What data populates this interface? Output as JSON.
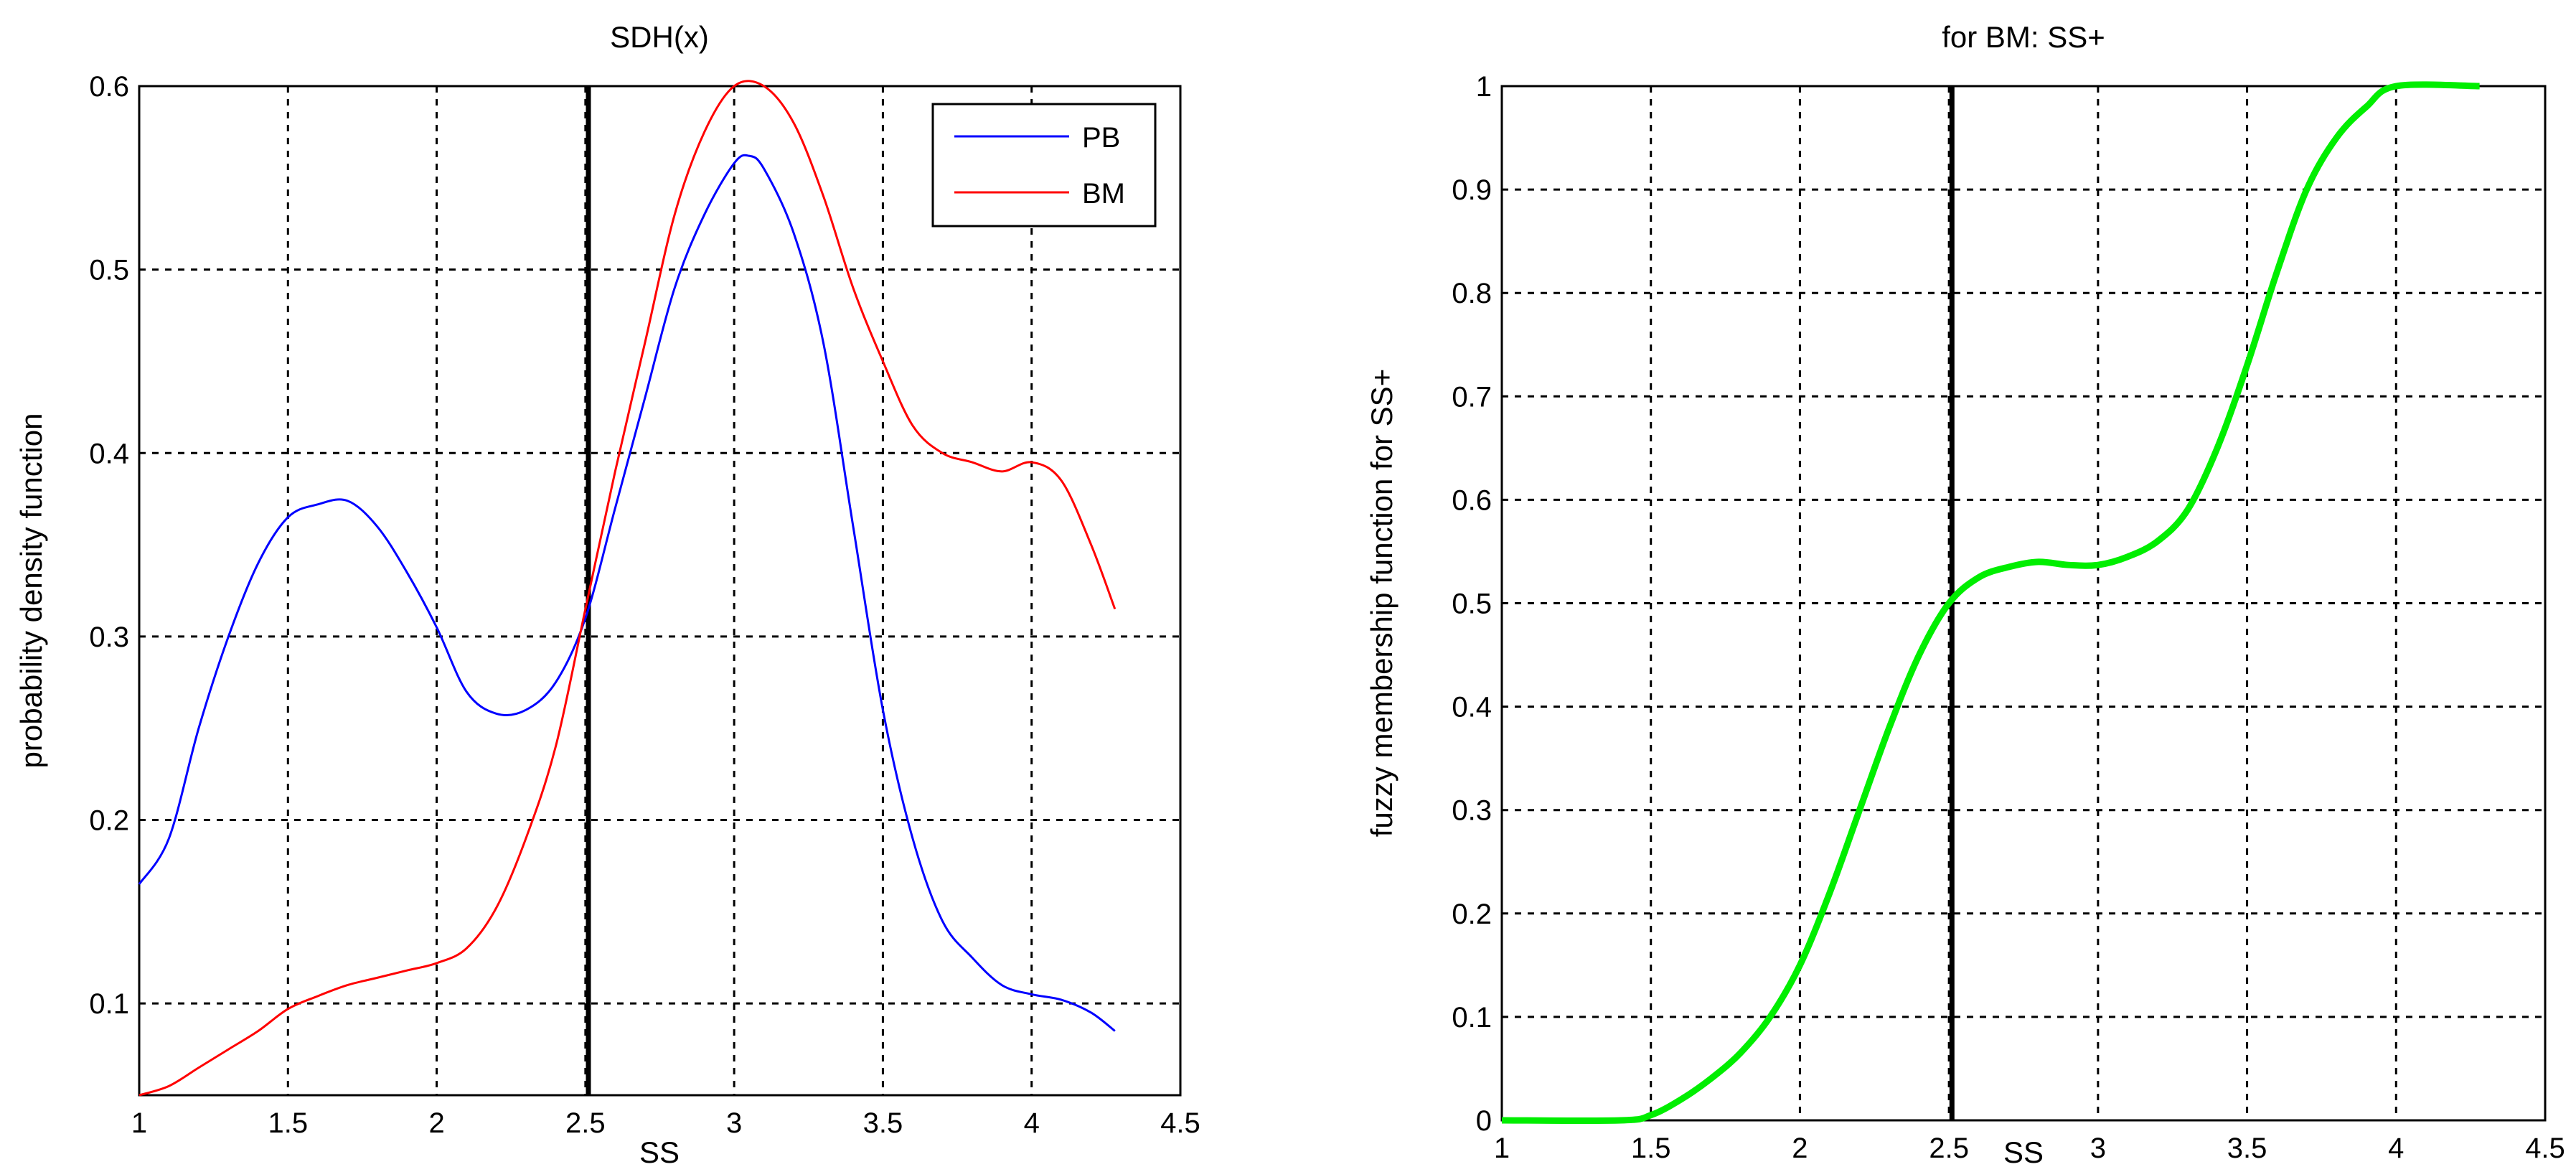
{
  "chart_data": [
    {
      "type": "line",
      "title": "SDH(x)",
      "xlabel": "SS",
      "ylabel": "probability density function",
      "xlim": [
        1,
        4.5
      ],
      "ylim": [
        0.05,
        0.6
      ],
      "xticks": [
        "1",
        "1.5",
        "2",
        "2.5",
        "3",
        "3.5",
        "4",
        "4.5"
      ],
      "xtick_values": [
        1,
        1.5,
        2,
        2.5,
        3,
        3.5,
        4,
        4.5
      ],
      "yticks": [
        "0.1",
        "0.2",
        "0.3",
        "0.4",
        "0.5",
        "0.6"
      ],
      "ytick_values": [
        0.1,
        0.2,
        0.3,
        0.4,
        0.5,
        0.6
      ],
      "grid": true,
      "legend": "top-right",
      "vline": 2.51,
      "series": [
        {
          "name": "PB",
          "color": "#0000ff",
          "x": [
            1,
            1.1,
            1.2,
            1.3,
            1.4,
            1.5,
            1.6,
            1.7,
            1.8,
            1.9,
            2,
            2.1,
            2.2,
            2.3,
            2.4,
            2.5,
            2.6,
            2.7,
            2.8,
            2.9,
            3,
            3.05,
            3.1,
            3.2,
            3.3,
            3.4,
            3.5,
            3.6,
            3.7,
            3.8,
            3.9,
            4,
            4.1,
            4.2,
            4.28
          ],
          "y": [
            0.165,
            0.19,
            0.25,
            0.3,
            0.34,
            0.365,
            0.372,
            0.374,
            0.36,
            0.335,
            0.305,
            0.27,
            0.258,
            0.26,
            0.275,
            0.31,
            0.37,
            0.43,
            0.49,
            0.53,
            0.558,
            0.562,
            0.555,
            0.52,
            0.46,
            0.36,
            0.26,
            0.19,
            0.145,
            0.125,
            0.11,
            0.105,
            0.102,
            0.095,
            0.085
          ]
        },
        {
          "name": "BM",
          "color": "#ff0000",
          "x": [
            1,
            1.1,
            1.2,
            1.3,
            1.4,
            1.5,
            1.6,
            1.7,
            1.8,
            1.9,
            2,
            2.1,
            2.2,
            2.3,
            2.4,
            2.5,
            2.6,
            2.7,
            2.8,
            2.9,
            3,
            3.1,
            3.2,
            3.3,
            3.4,
            3.5,
            3.6,
            3.7,
            3.8,
            3.9,
            4,
            4.1,
            4.2,
            4.28
          ],
          "y": [
            0.05,
            0.055,
            0.065,
            0.075,
            0.085,
            0.097,
            0.104,
            0.11,
            0.114,
            0.118,
            0.122,
            0.13,
            0.152,
            0.19,
            0.24,
            0.315,
            0.39,
            0.46,
            0.53,
            0.575,
            0.6,
            0.6,
            0.58,
            0.54,
            0.49,
            0.45,
            0.415,
            0.4,
            0.395,
            0.39,
            0.395,
            0.385,
            0.35,
            0.315
          ]
        }
      ]
    },
    {
      "type": "line",
      "title": "for BM: SS+",
      "xlabel": "SS",
      "ylabel": "fuzzy membership function for SS+",
      "xlim": [
        1,
        4.5
      ],
      "ylim": [
        0,
        1
      ],
      "xticks": [
        "1",
        "1.5",
        "2",
        "2.5",
        "3",
        "3.5",
        "4",
        "4.5"
      ],
      "xtick_values": [
        1,
        1.5,
        2,
        2.5,
        3,
        3.5,
        4,
        4.5
      ],
      "yticks": [
        "0",
        "0.1",
        "0.2",
        "0.3",
        "0.4",
        "0.5",
        "0.6",
        "0.7",
        "0.8",
        "0.9",
        "1"
      ],
      "ytick_values": [
        0,
        0.1,
        0.2,
        0.3,
        0.4,
        0.5,
        0.6,
        0.7,
        0.8,
        0.9,
        1
      ],
      "grid": true,
      "vline": 2.51,
      "series": [
        {
          "color": "#00ee00",
          "x": [
            1,
            1.4,
            1.5,
            1.6,
            1.7,
            1.8,
            1.9,
            2,
            2.1,
            2.2,
            2.3,
            2.4,
            2.5,
            2.6,
            2.7,
            2.8,
            2.9,
            3,
            3.1,
            3.2,
            3.3,
            3.4,
            3.5,
            3.6,
            3.7,
            3.8,
            3.9,
            4,
            4.28
          ],
          "y": [
            0,
            0,
            0.005,
            0.02,
            0.04,
            0.065,
            0.1,
            0.15,
            0.22,
            0.3,
            0.38,
            0.45,
            0.5,
            0.525,
            0.535,
            0.54,
            0.537,
            0.537,
            0.545,
            0.56,
            0.59,
            0.65,
            0.73,
            0.82,
            0.9,
            0.95,
            0.98,
            1,
            1
          ]
        }
      ]
    }
  ]
}
